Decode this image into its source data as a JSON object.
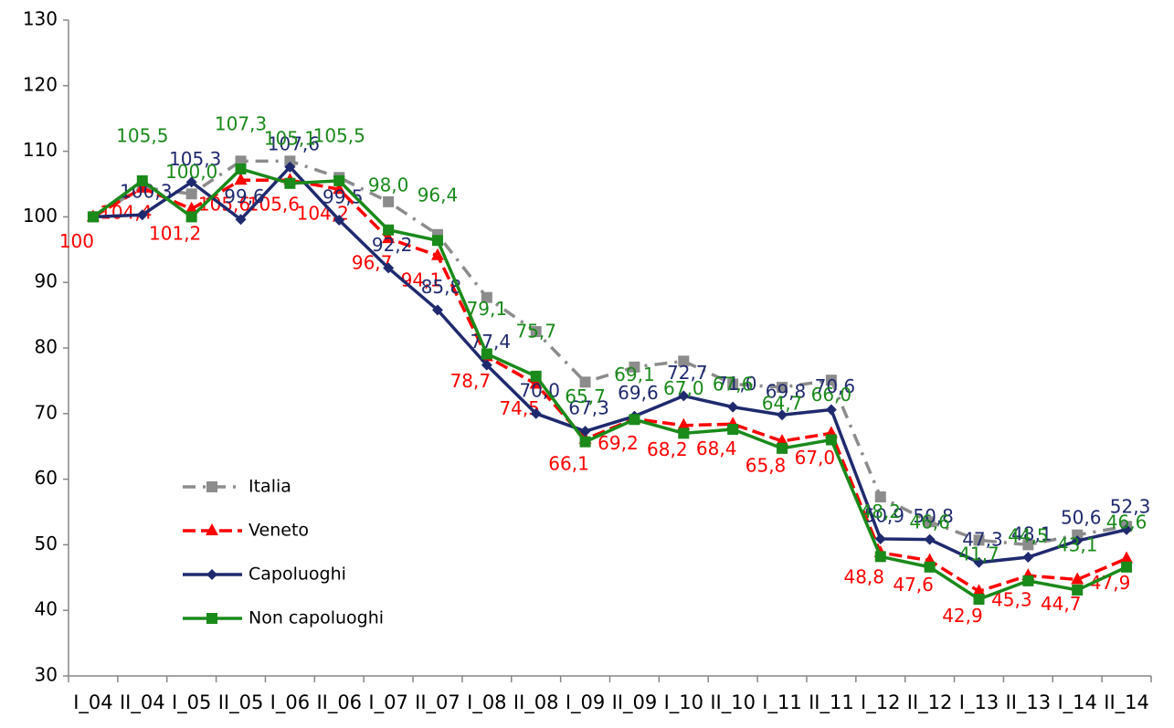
{
  "chart_data": {
    "type": "line",
    "categories": [
      "I_04",
      "II_04",
      "I_05",
      "II_05",
      "I_06",
      "II_06",
      "I_07",
      "II_07",
      "I_08",
      "II_08",
      "I_09",
      "II_09",
      "I_10",
      "II_10",
      "I_11",
      "II_11",
      "I_12",
      "II_12",
      "I_13",
      "II_13",
      "I_14",
      "II_14"
    ],
    "ylim": [
      30,
      130
    ],
    "yticks": [
      30,
      40,
      50,
      60,
      70,
      80,
      90,
      100,
      110,
      120,
      130
    ],
    "legend": "lower-left",
    "series": [
      {
        "name": "Italia",
        "color": "#8c8c8c",
        "marker": "square",
        "dash": "dashdot",
        "values": [
          100,
          104.5,
          103.5,
          108.5,
          108.5,
          106,
          102.3,
          97.3,
          87.7,
          82.5,
          74.8,
          77.1,
          78.0,
          74.5,
          74.0,
          75.1,
          57.3,
          53.5,
          50.7,
          50.0,
          51.5,
          52.8
        ]
      },
      {
        "name": "Veneto",
        "color": "#ff0000",
        "marker": "triangle",
        "dash": "dash",
        "values": [
          100,
          104.4,
          101.2,
          105.6,
          105.6,
          104.2,
          96.7,
          94.1,
          78.7,
          74.5,
          66.1,
          69.2,
          68.2,
          68.4,
          65.8,
          67.0,
          48.8,
          47.6,
          42.9,
          45.3,
          44.7,
          47.9
        ],
        "value_labels": [
          "100",
          "104,4",
          "101,2",
          "105,6",
          "105,6",
          "104,2",
          "96,7",
          "94,1",
          "78,7",
          "74,5",
          "66,1",
          "69,2",
          "68,2",
          "68,4",
          "65,8",
          "67,0",
          "48,8",
          "47,6",
          "42,9",
          "45,3",
          "44,7",
          "47,9"
        ]
      },
      {
        "name": "Capoluoghi",
        "color": "#1f2a6e",
        "marker": "diamond",
        "dash": "solid",
        "values": [
          100,
          100.3,
          105.3,
          99.6,
          107.6,
          99.5,
          92.2,
          85.8,
          77.4,
          70.0,
          67.3,
          69.6,
          72.7,
          71.0,
          69.8,
          70.6,
          50.9,
          50.8,
          47.3,
          48.1,
          50.6,
          52.3
        ],
        "value_labels": [
          null,
          "100,3",
          "105,3",
          "99,6",
          "107,6",
          "99,5",
          "92,2",
          "85,8",
          "77,4",
          "70,0",
          "67,3",
          "69,6",
          "72,7",
          "71,0",
          "69,8",
          "70,6",
          "50,9",
          "50,8",
          "47,3",
          "48,1",
          "50,6",
          "52,3"
        ]
      },
      {
        "name": "Non capoluoghi",
        "color": "#1a8a1a",
        "marker": "square",
        "dash": "solid",
        "values": [
          100,
          105.5,
          100.0,
          107.3,
          105.1,
          105.5,
          98.0,
          96.4,
          79.1,
          75.7,
          65.7,
          69.1,
          67.0,
          67.6,
          64.7,
          66.0,
          48.2,
          46.6,
          41.7,
          44.5,
          43.1,
          46.6
        ],
        "value_labels": [
          null,
          "105,5",
          "100,0",
          "107,3",
          "105,1",
          "105,5",
          "98,0",
          "96,4",
          "79,1",
          "75,7",
          "65,7",
          "69,1",
          "67,0",
          "67,6",
          "64,7",
          "66,0",
          "48,2",
          "46,6",
          "41,7",
          "44,5",
          "43,1",
          "46,6"
        ]
      }
    ]
  }
}
